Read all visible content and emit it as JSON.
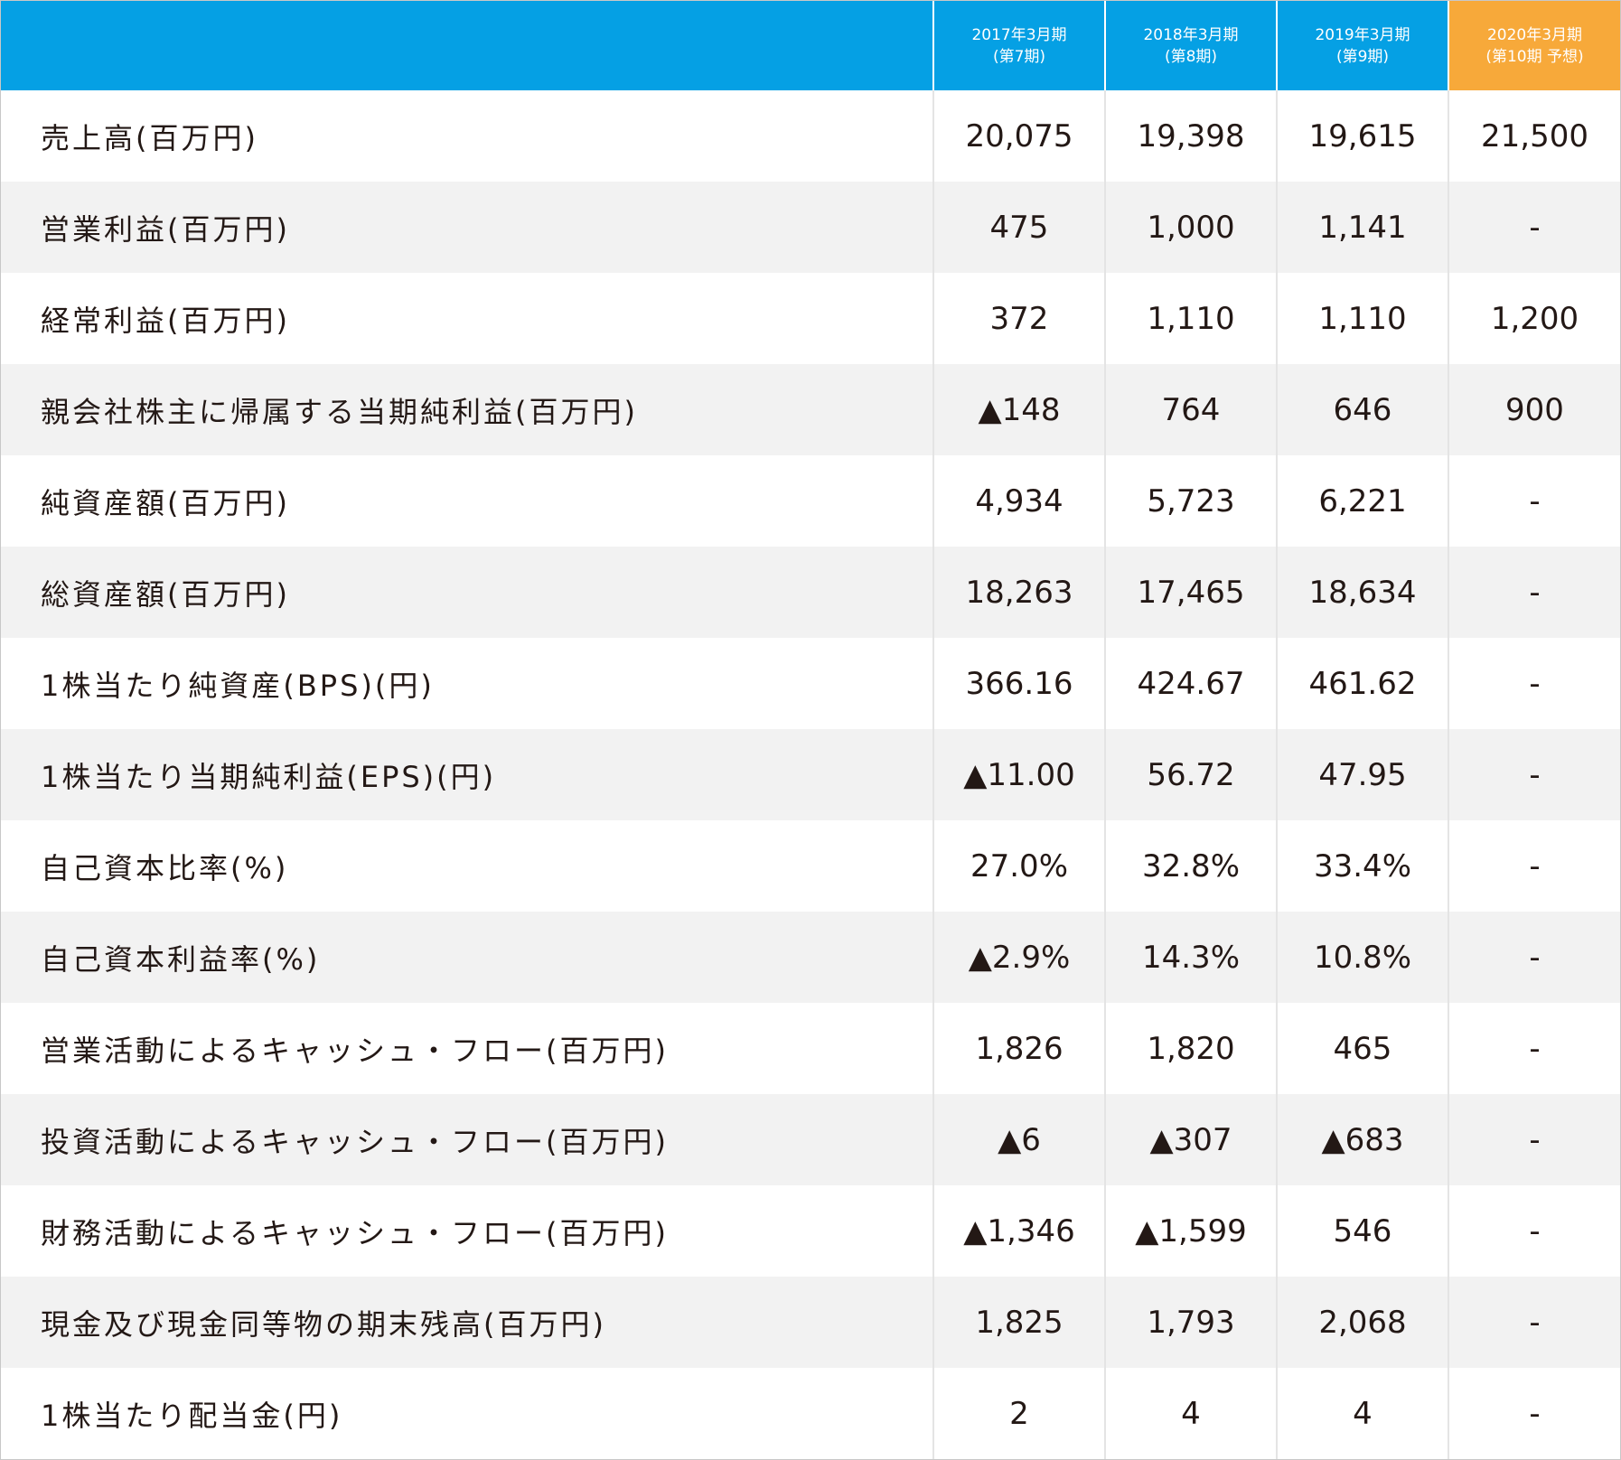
{
  "header": {
    "columns": [
      {
        "line1": "2017年3月期",
        "line2": "(第7期)"
      },
      {
        "line1": "2018年3月期",
        "line2": "(第8期)"
      },
      {
        "line1": "2019年3月期",
        "line2": "(第9期)"
      },
      {
        "line1": "2020年3月期",
        "line2": "(第10期 予想)"
      }
    ]
  },
  "colors": {
    "header_blue": "#05a0e4",
    "header_forecast_orange": "#f7a93a",
    "row_stripe": "#f2f2f2"
  },
  "rows": [
    {
      "label": "売上高(百万円)",
      "values": [
        "20,075",
        "19,398",
        "19,615",
        "21,500"
      ]
    },
    {
      "label": "営業利益(百万円)",
      "values": [
        "475",
        "1,000",
        "1,141",
        "-"
      ]
    },
    {
      "label": "経常利益(百万円)",
      "values": [
        "372",
        "1,110",
        "1,110",
        "1,200"
      ]
    },
    {
      "label": "親会社株主に帰属する当期純利益(百万円)",
      "values": [
        "▲148",
        "764",
        "646",
        "900"
      ]
    },
    {
      "label": "純資産額(百万円)",
      "values": [
        "4,934",
        "5,723",
        "6,221",
        "-"
      ]
    },
    {
      "label": "総資産額(百万円)",
      "values": [
        "18,263",
        "17,465",
        "18,634",
        "-"
      ]
    },
    {
      "label": "1株当たり純資産(BPS)(円)",
      "values": [
        "366.16",
        "424.67",
        "461.62",
        "-"
      ]
    },
    {
      "label": "1株当たり当期純利益(EPS)(円)",
      "values": [
        "▲11.00",
        "56.72",
        "47.95",
        "-"
      ]
    },
    {
      "label": "自己資本比率(%)",
      "values": [
        "27.0%",
        "32.8%",
        "33.4%",
        "-"
      ]
    },
    {
      "label": "自己資本利益率(%)",
      "values": [
        "▲2.9%",
        "14.3%",
        "10.8%",
        "-"
      ]
    },
    {
      "label": "営業活動によるキャッシュ・フロー(百万円)",
      "values": [
        "1,826",
        "1,820",
        "465",
        "-"
      ]
    },
    {
      "label": "投資活動によるキャッシュ・フロー(百万円)",
      "values": [
        "▲6",
        "▲307",
        "▲683",
        "-"
      ]
    },
    {
      "label": "財務活動によるキャッシュ・フロー(百万円)",
      "values": [
        "▲1,346",
        "▲1,599",
        "546",
        "-"
      ]
    },
    {
      "label": "現金及び現金同等物の期末残高(百万円)",
      "values": [
        "1,825",
        "1,793",
        "2,068",
        "-"
      ]
    },
    {
      "label": "1株当たり配当金(円)",
      "values": [
        "2",
        "4",
        "4",
        "-"
      ]
    }
  ]
}
